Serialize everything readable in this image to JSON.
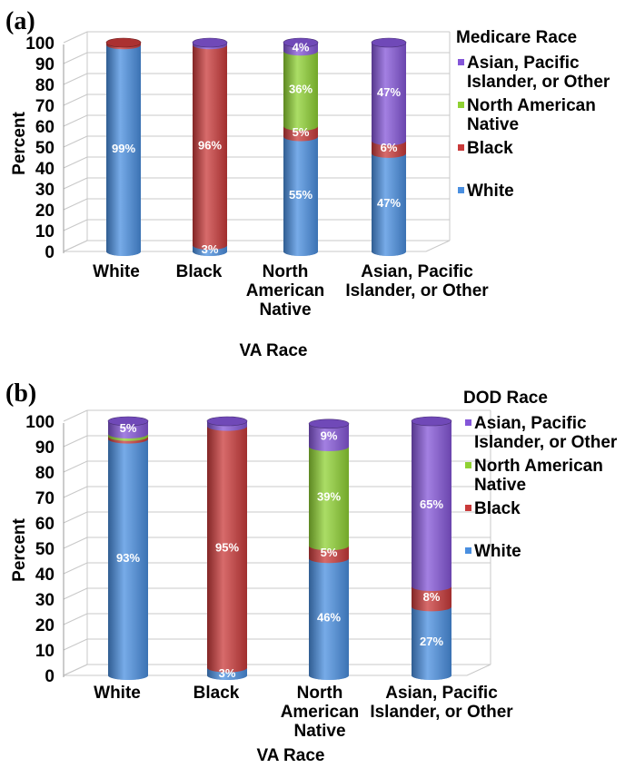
{
  "chart_data": [
    {
      "type": "bar",
      "panel_label": "(a)",
      "xlabel": "VA Race",
      "ylabel": "Percent",
      "ylim": [
        0,
        100
      ],
      "yticks": [
        "0",
        "10",
        "20",
        "30",
        "40",
        "50",
        "60",
        "70",
        "80",
        "90",
        "100"
      ],
      "legend_title": "Medicare Race",
      "legend_placement": "right",
      "stacked": true,
      "categories": [
        [
          "White"
        ],
        [
          "Black"
        ],
        [
          "North",
          "American",
          "Native"
        ],
        [
          "Asian, Pacific",
          "Islander, or Other"
        ]
      ],
      "series": [
        {
          "name": "White",
          "color": "#4a8fe0",
          "values": [
            99,
            3,
            55,
            47
          ],
          "labels": [
            "99%",
            "3%",
            "55%",
            "47%"
          ]
        },
        {
          "name": "Black",
          "color": "#c93a3a",
          "values": [
            1,
            96,
            5,
            6
          ],
          "labels": [
            "",
            "96%",
            "5%",
            "6%"
          ]
        },
        {
          "name": "North American Native",
          "color": "#8fd133",
          "values": [
            0,
            0,
            36,
            0
          ],
          "labels": [
            "",
            "",
            "36%",
            ""
          ]
        },
        {
          "name": "Asian, Pacific Islander, or Other",
          "color": "#8456d8",
          "values": [
            0,
            1,
            4,
            47
          ],
          "labels": [
            "",
            "",
            "4%",
            "47%"
          ]
        }
      ],
      "legend": [
        {
          "lines": [
            "Asian, Pacific",
            "Islander, or Other"
          ],
          "color": "#8456d8"
        },
        {
          "lines": [
            "North American",
            "Native"
          ],
          "color": "#8fd133"
        },
        {
          "lines": [
            "Black"
          ],
          "color": "#c93a3a"
        },
        {
          "lines": [
            "White"
          ],
          "color": "#4a8fe0"
        }
      ]
    },
    {
      "type": "bar",
      "panel_label": "(b)",
      "xlabel": "VA Race",
      "ylabel": "Percent",
      "ylim": [
        0,
        100
      ],
      "yticks": [
        "0",
        "10",
        "20",
        "30",
        "40",
        "50",
        "60",
        "70",
        "80",
        "90",
        "100"
      ],
      "legend_title": "DOD Race",
      "legend_placement": "right",
      "stacked": true,
      "categories": [
        [
          "White"
        ],
        [
          "Black"
        ],
        [
          "North",
          "American",
          "Native"
        ],
        [
          "Asian, Pacific",
          "Islander, or Other"
        ]
      ],
      "series": [
        {
          "name": "White",
          "color": "#4a8fe0",
          "values": [
            93,
            3,
            46,
            27
          ],
          "labels": [
            "93%",
            "3%",
            "46%",
            "27%"
          ]
        },
        {
          "name": "Black",
          "color": "#c93a3a",
          "values": [
            1,
            95,
            5,
            8
          ],
          "labels": [
            "",
            "95%",
            "5%",
            "8%"
          ]
        },
        {
          "name": "North American Native",
          "color": "#8fd133",
          "values": [
            1,
            0,
            39,
            0
          ],
          "labels": [
            "",
            "",
            "39%",
            ""
          ]
        },
        {
          "name": "Asian, Pacific Islander, or Other",
          "color": "#8456d8",
          "values": [
            5,
            2,
            9,
            65
          ],
          "labels": [
            "5%",
            "",
            "9%",
            "65%"
          ]
        }
      ],
      "legend": [
        {
          "lines": [
            "Asian, Pacific",
            "Islander, or Other"
          ],
          "color": "#8456d8"
        },
        {
          "lines": [
            "North American",
            "Native"
          ],
          "color": "#8fd133"
        },
        {
          "lines": [
            "Black"
          ],
          "color": "#c93a3a"
        },
        {
          "lines": [
            "White"
          ],
          "color": "#4a8fe0"
        }
      ]
    }
  ]
}
